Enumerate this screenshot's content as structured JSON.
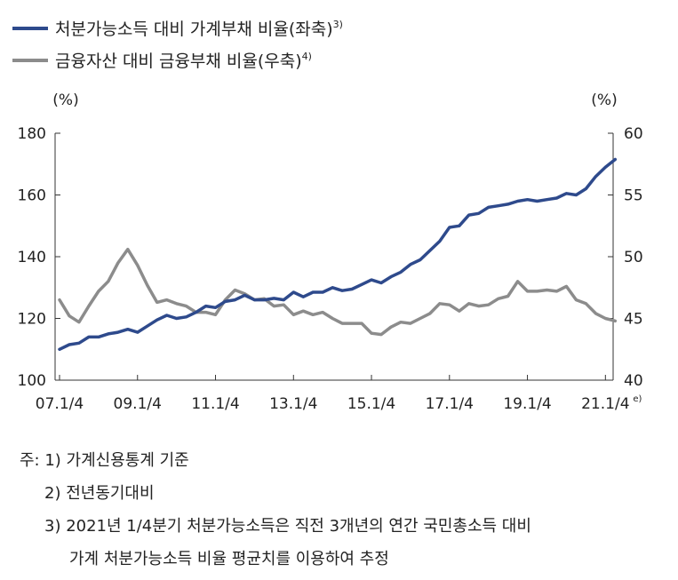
{
  "chart_data": {
    "type": "line",
    "legend": [
      {
        "label": "처분가능소득 대비 가계부채 비율(좌축)",
        "sup": "3)",
        "color": "#2e4a8c"
      },
      {
        "label": "금융자산 대비 금융부채 비율(우축)",
        "sup": "4)",
        "color": "#8c8c8c"
      }
    ],
    "y_left": {
      "unit": "(%)",
      "min": 100,
      "max": 180,
      "ticks": [
        "100",
        "120",
        "140",
        "160",
        "180"
      ]
    },
    "y_right": {
      "unit": "(%)",
      "min": 40,
      "max": 60,
      "ticks": [
        "40",
        "45",
        "50",
        "55",
        "60"
      ]
    },
    "x_tick_labels": [
      "07.1/4",
      "09.1/4",
      "11.1/4",
      "13.1/4",
      "15.1/4",
      "17.1/4",
      "19.1/4",
      "21.1/4"
    ],
    "x_tick_sup": "e)",
    "x_range": [
      "2007Q1",
      "2021Q2"
    ],
    "series": [
      {
        "name": "처분가능소득 대비 가계부채 비율(좌축)",
        "axis": "left",
        "values": [
          110.0,
          111.5,
          112.0,
          114.0,
          114.0,
          115.0,
          115.5,
          116.5,
          115.5,
          117.5,
          119.5,
          121.0,
          120.0,
          120.5,
          122.0,
          124.0,
          123.5,
          125.5,
          126.0,
          127.5,
          126.0,
          126.0,
          126.5,
          126.0,
          128.5,
          127.0,
          128.5,
          128.5,
          130.0,
          129.0,
          129.5,
          131.0,
          132.5,
          131.5,
          133.5,
          135.0,
          137.5,
          139.0,
          142.0,
          145.0,
          149.5,
          150.0,
          153.5,
          154.0,
          156.0,
          156.5,
          157.0,
          158.0,
          158.5,
          158.0,
          158.5,
          159.0,
          160.5,
          160.0,
          162.0,
          166.0,
          169.0,
          171.5
        ]
      },
      {
        "name": "금융자산 대비 금융부채 비율(우축)",
        "axis": "right",
        "values": [
          46.5,
          45.2,
          44.7,
          46.0,
          47.2,
          48.0,
          49.5,
          50.6,
          49.3,
          47.7,
          46.3,
          46.5,
          46.2,
          46.0,
          45.5,
          45.5,
          45.3,
          46.5,
          47.3,
          47.0,
          46.5,
          46.6,
          46.0,
          46.1,
          45.3,
          45.6,
          45.3,
          45.5,
          45.0,
          44.6,
          44.6,
          44.6,
          43.8,
          43.7,
          44.3,
          44.7,
          44.6,
          45.0,
          45.4,
          46.2,
          46.1,
          45.6,
          46.2,
          46.0,
          46.1,
          46.6,
          46.8,
          48.0,
          47.2,
          47.2,
          47.3,
          47.2,
          47.6,
          46.5,
          46.2,
          45.4,
          45.0,
          44.8
        ]
      }
    ]
  },
  "notes": [
    "주: 1) 가계신용통계 기준",
    "2) 전년동기대비",
    "3) 2021년 1/4분기 처분가능소득은 직전 3개년의 연간 국민총소득 대비",
    "가계 처분가능소득 비율 평균치를 이용하여 추정"
  ]
}
